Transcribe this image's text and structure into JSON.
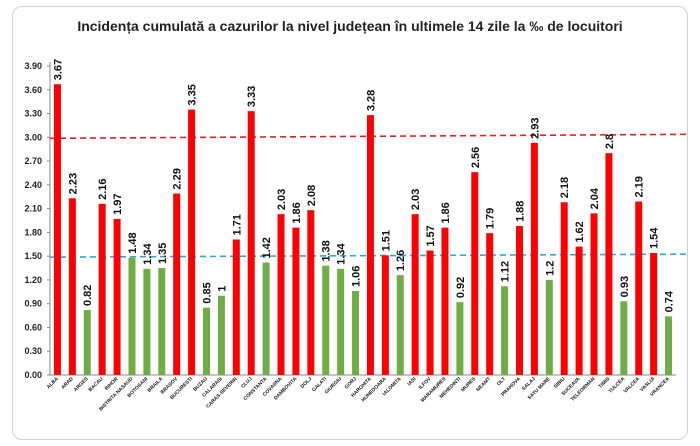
{
  "chart_data": {
    "type": "bar",
    "title": "Incidența cumulată a cazurilor la nivel județean în ultimele 14 zile la ‰ de locuitori",
    "xlabel": "",
    "ylabel": "",
    "ylim": [
      0,
      3.9
    ],
    "yticks": [
      "0.00",
      "0.30",
      "0.60",
      "0.90",
      "1.20",
      "1.50",
      "1.80",
      "2.10",
      "2.40",
      "2.70",
      "3.00",
      "3.30",
      "3.60",
      "3.90"
    ],
    "categories": [
      "ALBA",
      "ARAD",
      "ARGES",
      "BACAU",
      "BIHOR",
      "BISTRITA NASAUD",
      "BOTOSANI",
      "BRAILA",
      "BRASOV",
      "BUCURESTI",
      "BUZAU",
      "CALARASI",
      "CARAS-SEVERIN",
      "CLUJ",
      "CONSTANTA",
      "COVASNA",
      "DAMBOVITA",
      "DOLJ",
      "GALATI",
      "GIURGIU",
      "GORJ",
      "HARGHITA",
      "HUNEDOARA",
      "IALOMITA",
      "IASI",
      "ILFOV",
      "MARAMURES",
      "MEHEDINTI",
      "MURES",
      "NEAMT",
      "OLT",
      "PRAHOVA",
      "SALAJ",
      "SATU MARE",
      "SIBIU",
      "SUCEAVA",
      "TELEORMAN",
      "TIMIS",
      "TULCEA",
      "VALCEA",
      "VASLUI",
      "VRANCEA"
    ],
    "values": [
      3.67,
      2.23,
      0.82,
      2.16,
      1.97,
      1.48,
      1.34,
      1.35,
      2.29,
      3.35,
      0.85,
      1,
      1.71,
      3.33,
      1.42,
      2.03,
      1.86,
      2.08,
      1.38,
      1.34,
      1.06,
      3.28,
      1.51,
      1.26,
      2.03,
      1.57,
      1.86,
      0.92,
      2.56,
      1.79,
      1.12,
      1.88,
      2.93,
      1.2,
      2.18,
      1.62,
      2.04,
      2.8,
      0.93,
      2.19,
      1.54,
      0.74
    ],
    "value_labels": [
      "3.67",
      "2.23",
      "0.82",
      "2.16",
      "1.97",
      "1.48",
      "1.34",
      "1.35",
      "2.29",
      "3.35",
      "0.85",
      "1",
      "1.71",
      "3.33",
      "1.42",
      "2.03",
      "1.86",
      "2.08",
      "1.38",
      "1.34",
      "1.06",
      "3.28",
      "1.51",
      "1.26",
      "2.03",
      "1.57",
      "1.86",
      "0.92",
      "2.56",
      "1.79",
      "1.12",
      "1.88",
      "2.93",
      "1.2",
      "2.18",
      "1.62",
      "2.04",
      "2.8",
      "0.93",
      "2.19",
      "1.54",
      "0.74"
    ],
    "reference_lines": [
      {
        "value": 3.0,
        "color": "#e02020",
        "style": "dashed"
      },
      {
        "value": 1.5,
        "color": "#2aa8e0",
        "style": "dashed"
      }
    ],
    "colors": {
      "above": "#ff0000",
      "below": "#70ad47"
    },
    "threshold": 1.5,
    "grid": false,
    "legend": "none"
  }
}
